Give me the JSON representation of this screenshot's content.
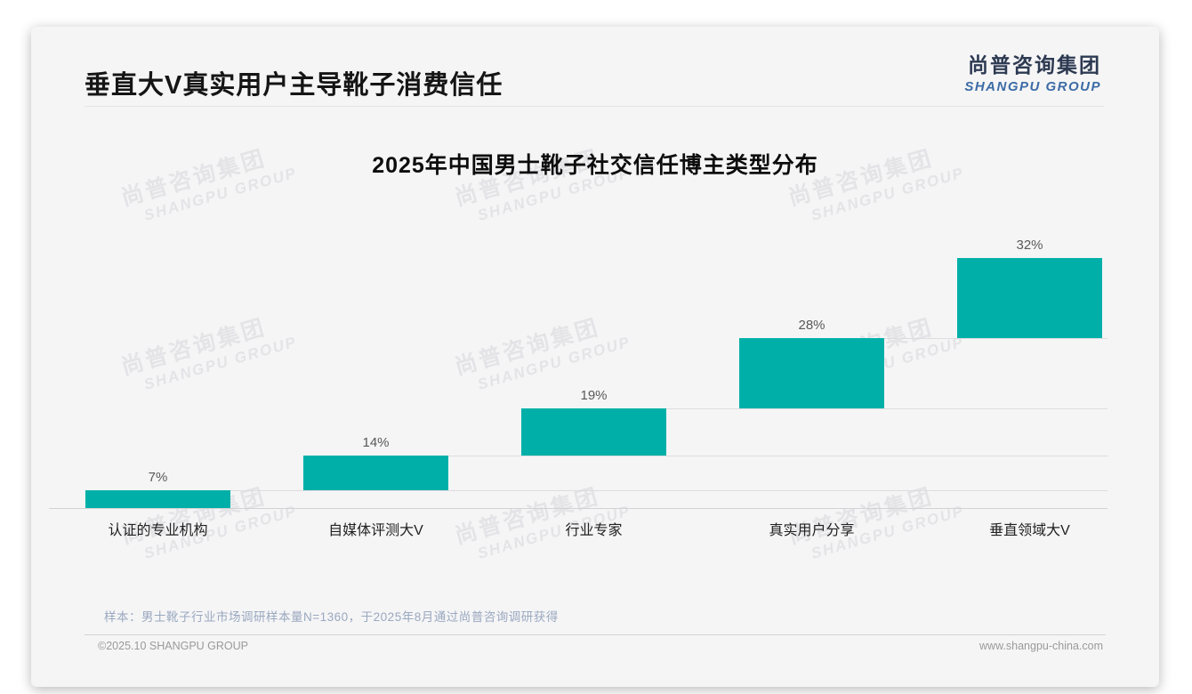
{
  "page": {
    "header": {
      "title": "垂直大V真实用户主导靴子消费信任"
    },
    "logo": {
      "zh": "尚普咨询集团",
      "en": "SHANGPU GROUP"
    },
    "watermark": {
      "line1": "尚普咨询集团",
      "line2": "SHANGPU GROUP"
    },
    "footnote": "样本：男士靴子行业市场调研样本量N=1360，于2025年8月通过尚普咨询调研获得",
    "footer": {
      "left": "©2025.10 SHANGPU GROUP",
      "right": "www.shangpu-china.com"
    }
  },
  "chart_data": {
    "type": "bar",
    "subtype": "waterfall-staircase",
    "title": "2025年中国男士靴子社交信任博主类型分布",
    "categories": [
      "认证的专业机构",
      "自媒体评测大V",
      "行业专家",
      "真实用户分享",
      "垂直领域大V"
    ],
    "values": [
      7,
      14,
      19,
      28,
      32
    ],
    "value_labels": [
      "7%",
      "14%",
      "19%",
      "28%",
      "32%"
    ],
    "cumulative": [
      7,
      21,
      40,
      68,
      100
    ],
    "unit": "%",
    "ylim": [
      0,
      100
    ],
    "bar_color": "#00b0a8",
    "value_label_color": "#595959",
    "grid": false,
    "legend": false
  }
}
